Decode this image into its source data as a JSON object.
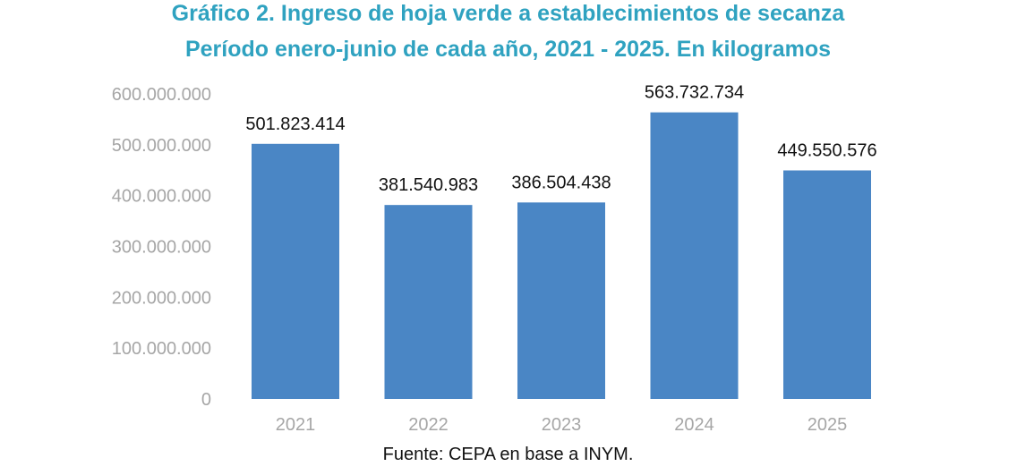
{
  "title_line1": "Gráfico 2. Ingreso de hoja verde a establecimientos de secanza",
  "title_line2": "Período enero-junio de cada año, 2021 - 2025. En kilogramos",
  "source": "Fuente: CEPA en base a INYM.",
  "chart_data": {
    "type": "bar",
    "categories": [
      "2021",
      "2022",
      "2023",
      "2024",
      "2025"
    ],
    "values": [
      501823414,
      381540983,
      386504438,
      563732734,
      449550576
    ],
    "data_labels": [
      "501.823.414",
      "381.540.983",
      "386.504.438",
      "563.732.734",
      "449.550.576"
    ],
    "ylim": [
      0,
      600000000
    ],
    "yticks": [
      0,
      100000000,
      200000000,
      300000000,
      400000000,
      500000000,
      600000000
    ],
    "ytick_labels": [
      "0",
      "100.000.000",
      "200.000.000",
      "300.000.000",
      "400.000.000",
      "500.000.000",
      "600.000.000"
    ],
    "bar_color": "#4a86c5",
    "grid": false,
    "legend": "none"
  }
}
